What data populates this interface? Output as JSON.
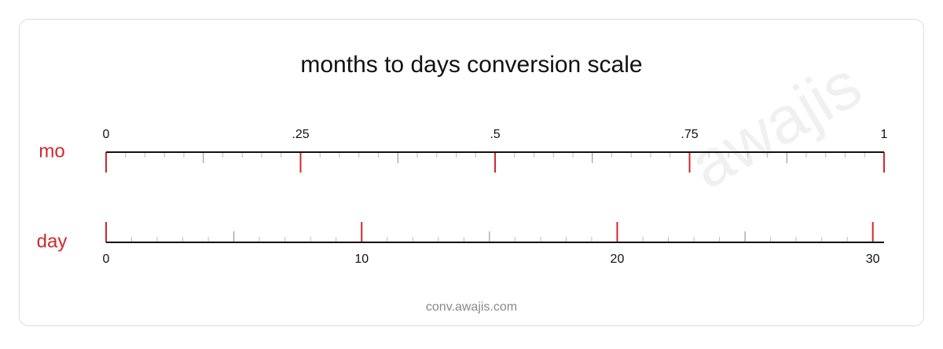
{
  "title": "months to days conversion scale",
  "watermark": "awajis",
  "footer": "conv.awajis.com",
  "scales": [
    {
      "unit": "mo",
      "side": "top",
      "xlim": [
        0,
        1
      ],
      "ticks": [
        0,
        {
          "value": 0.25,
          "label": ".25"
        },
        {
          "value": 0.5,
          "label": ".5"
        },
        {
          "value": 0.75,
          "label": ".75"
        },
        1
      ],
      "minor_step": 0.025,
      "mid_step": 0.125
    },
    {
      "unit": "day",
      "side": "bottom",
      "xlim": [
        0,
        30.44
      ],
      "ticks": [
        0,
        10,
        20,
        30
      ],
      "minor_step": 1,
      "mid_step": 5
    }
  ]
}
